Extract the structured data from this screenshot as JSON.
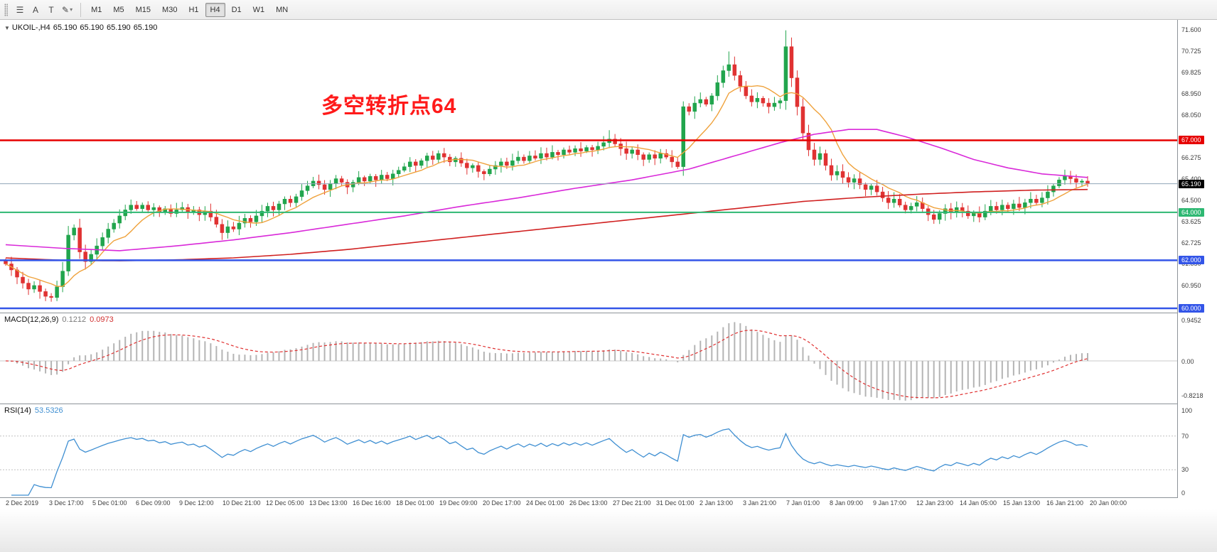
{
  "toolbar": {
    "tools": [
      {
        "name": "menu-icon",
        "glyph": "☰"
      },
      {
        "name": "text-annotate-tool",
        "glyph": "A"
      },
      {
        "name": "text-tool",
        "glyph": "T"
      },
      {
        "name": "draw-tool-icon",
        "glyph": "✎"
      }
    ],
    "timeframes": [
      "M1",
      "M5",
      "M15",
      "M30",
      "H1",
      "H4",
      "D1",
      "W1",
      "MN"
    ],
    "active_timeframe": "H4"
  },
  "chart": {
    "symbol_ohlc": {
      "symbol": "UKOIL-,H4",
      "open": "65.190",
      "high": "65.190",
      "low": "65.190",
      "close": "65.190"
    },
    "annotation": {
      "text": "多空转折点64",
      "color": "#ff1a1a"
    },
    "axis": {
      "ticks": [
        "71.600",
        "70.725",
        "69.825",
        "68.950",
        "68.050",
        "66.275",
        "65.400",
        "64.500",
        "63.625",
        "62.725",
        "61.850",
        "60.950"
      ]
    },
    "levels": [
      {
        "label": "67.000",
        "price": 67.0,
        "color": "#e60000",
        "width": 2.5
      },
      {
        "label": "64.000",
        "price": 64.0,
        "color": "#2eb872",
        "width": 2
      },
      {
        "label": "62.000",
        "price": 62.0,
        "color": "#3355e8",
        "width": 2.5
      },
      {
        "label": "60.000",
        "price": 60.0,
        "color": "#3355e8",
        "width": 2.5
      }
    ],
    "bid": {
      "label": "65.190",
      "price": 65.19,
      "line_color": "#90a4b8",
      "badge_color": "#000000"
    }
  },
  "macd": {
    "label": "MACD(12,26,9)",
    "value_main": "0.1212",
    "value_signal": "0.0973",
    "axis": [
      "0.9452",
      "0.00",
      "-0.8218"
    ]
  },
  "rsi": {
    "label": "RSI(14)",
    "value": "53.5326",
    "axis": [
      "100",
      "70",
      "30",
      "0"
    ],
    "level_lines": [
      70,
      30
    ]
  },
  "time_axis": [
    "2 Dec 2019",
    "3 Dec 17:00",
    "5 Dec 01:00",
    "6 Dec 09:00",
    "9 Dec 12:00",
    "10 Dec 21:00",
    "12 Dec 05:00",
    "13 Dec 13:00",
    "16 Dec 16:00",
    "18 Dec 01:00",
    "19 Dec 09:00",
    "20 Dec 17:00",
    "24 Dec 01:00",
    "26 Dec 13:00",
    "27 Dec 21:00",
    "31 Dec 01:00",
    "2 Jan 13:00",
    "3 Jan 21:00",
    "7 Jan 01:00",
    "8 Jan 09:00",
    "9 Jan 17:00",
    "12 Jan 23:00",
    "14 Jan 05:00",
    "15 Jan 13:00",
    "16 Jan 21:00",
    "20 Jan 00:00"
  ],
  "chart_data": {
    "type": "candlestick",
    "symbol": "UKOIL-",
    "timeframe": "H4",
    "price_range": [
      60.0,
      71.6
    ],
    "first_open": 62.0,
    "closes": [
      61.85,
      61.6,
      61.3,
      61.05,
      60.8,
      60.95,
      60.7,
      60.5,
      60.45,
      60.9,
      61.55,
      63.05,
      63.35,
      62.35,
      61.95,
      62.25,
      62.6,
      62.95,
      63.3,
      63.55,
      63.85,
      64.1,
      64.3,
      64.15,
      64.3,
      64.1,
      64.2,
      64.0,
      64.15,
      63.95,
      64.1,
      64.2,
      64.0,
      64.1,
      63.9,
      64.05,
      63.8,
      63.5,
      63.15,
      63.4,
      63.3,
      63.55,
      63.75,
      63.6,
      63.85,
      64.05,
      64.25,
      64.1,
      64.35,
      64.55,
      64.4,
      64.65,
      64.9,
      65.1,
      65.3,
      65.15,
      64.95,
      65.2,
      65.4,
      65.25,
      65.05,
      65.25,
      65.45,
      65.3,
      65.5,
      65.35,
      65.55,
      65.4,
      65.6,
      65.75,
      65.9,
      66.1,
      65.95,
      66.15,
      66.35,
      66.2,
      66.45,
      66.3,
      66.1,
      66.25,
      66.05,
      65.85,
      65.95,
      65.7,
      65.6,
      65.8,
      65.95,
      66.1,
      65.95,
      66.15,
      66.3,
      66.15,
      66.35,
      66.25,
      66.45,
      66.3,
      66.5,
      66.4,
      66.6,
      66.5,
      66.65,
      66.55,
      66.7,
      66.6,
      66.75,
      66.9,
      67.05,
      66.85,
      66.65,
      66.45,
      66.6,
      66.4,
      66.2,
      66.4,
      66.25,
      66.45,
      66.3,
      66.1,
      65.9,
      68.4,
      68.2,
      68.55,
      68.7,
      68.5,
      68.85,
      69.4,
      69.9,
      70.15,
      69.7,
      69.25,
      68.85,
      68.6,
      68.75,
      68.55,
      68.4,
      68.55,
      68.65,
      70.9,
      69.6,
      68.4,
      67.3,
      66.6,
      66.2,
      66.45,
      65.95,
      65.55,
      65.7,
      65.45,
      65.25,
      65.4,
      65.15,
      64.95,
      65.1,
      64.85,
      64.6,
      64.4,
      64.55,
      64.3,
      64.1,
      64.25,
      64.4,
      64.15,
      63.9,
      63.7,
      63.95,
      64.15,
      64.0,
      64.2,
      64.05,
      63.85,
      64.0,
      63.8,
      64.05,
      64.25,
      64.1,
      64.3,
      64.15,
      64.35,
      64.2,
      64.4,
      64.55,
      64.4,
      64.6,
      64.85,
      65.1,
      65.35,
      65.5,
      65.4,
      65.25,
      65.3,
      65.19
    ],
    "wick_overrides": {
      "7": {
        "low": 60.3
      },
      "11": {
        "low": 61.35
      },
      "106": {
        "high": 67.42
      },
      "119": {
        "high": 68.62
      },
      "127": {
        "high": 70.7
      },
      "137": {
        "high": 71.58
      },
      "163": {
        "low": 63.52
      },
      "171": {
        "low": 63.58
      }
    },
    "ma_fast_period": 9,
    "ma_mid_anchors": [
      [
        0,
        62.65
      ],
      [
        10,
        62.5
      ],
      [
        20,
        62.4
      ],
      [
        30,
        62.6
      ],
      [
        40,
        62.85
      ],
      [
        50,
        63.15
      ],
      [
        60,
        63.5
      ],
      [
        70,
        63.85
      ],
      [
        75,
        64.05
      ],
      [
        80,
        64.25
      ],
      [
        90,
        64.6
      ],
      [
        100,
        65.0
      ],
      [
        110,
        65.35
      ],
      [
        120,
        65.8
      ],
      [
        128,
        66.35
      ],
      [
        136,
        66.9
      ],
      [
        142,
        67.25
      ],
      [
        148,
        67.45
      ],
      [
        153,
        67.45
      ],
      [
        158,
        67.15
      ],
      [
        164,
        66.7
      ],
      [
        170,
        66.2
      ],
      [
        176,
        65.85
      ],
      [
        182,
        65.6
      ],
      [
        190,
        65.45
      ]
    ],
    "ma_slow_anchors": [
      [
        0,
        62.1
      ],
      [
        10,
        62.0
      ],
      [
        20,
        61.98
      ],
      [
        30,
        62.02
      ],
      [
        40,
        62.1
      ],
      [
        50,
        62.25
      ],
      [
        60,
        62.45
      ],
      [
        70,
        62.7
      ],
      [
        80,
        62.95
      ],
      [
        90,
        63.2
      ],
      [
        100,
        63.45
      ],
      [
        110,
        63.7
      ],
      [
        120,
        63.95
      ],
      [
        130,
        64.2
      ],
      [
        140,
        64.45
      ],
      [
        150,
        64.62
      ],
      [
        160,
        64.75
      ],
      [
        170,
        64.85
      ],
      [
        180,
        64.92
      ],
      [
        190,
        64.95
      ]
    ],
    "macd_params": [
      12,
      26,
      9
    ],
    "rsi_period": 14,
    "colors": {
      "up": "#21a54d",
      "down": "#e03232",
      "ma_fast": "#efa23c",
      "ma_mid": "#d929d9",
      "ma_slow": "#d02020",
      "macd_bar": "#b4b4b4",
      "macd_signal": "#e03232",
      "rsi": "#3f8fd2"
    }
  }
}
